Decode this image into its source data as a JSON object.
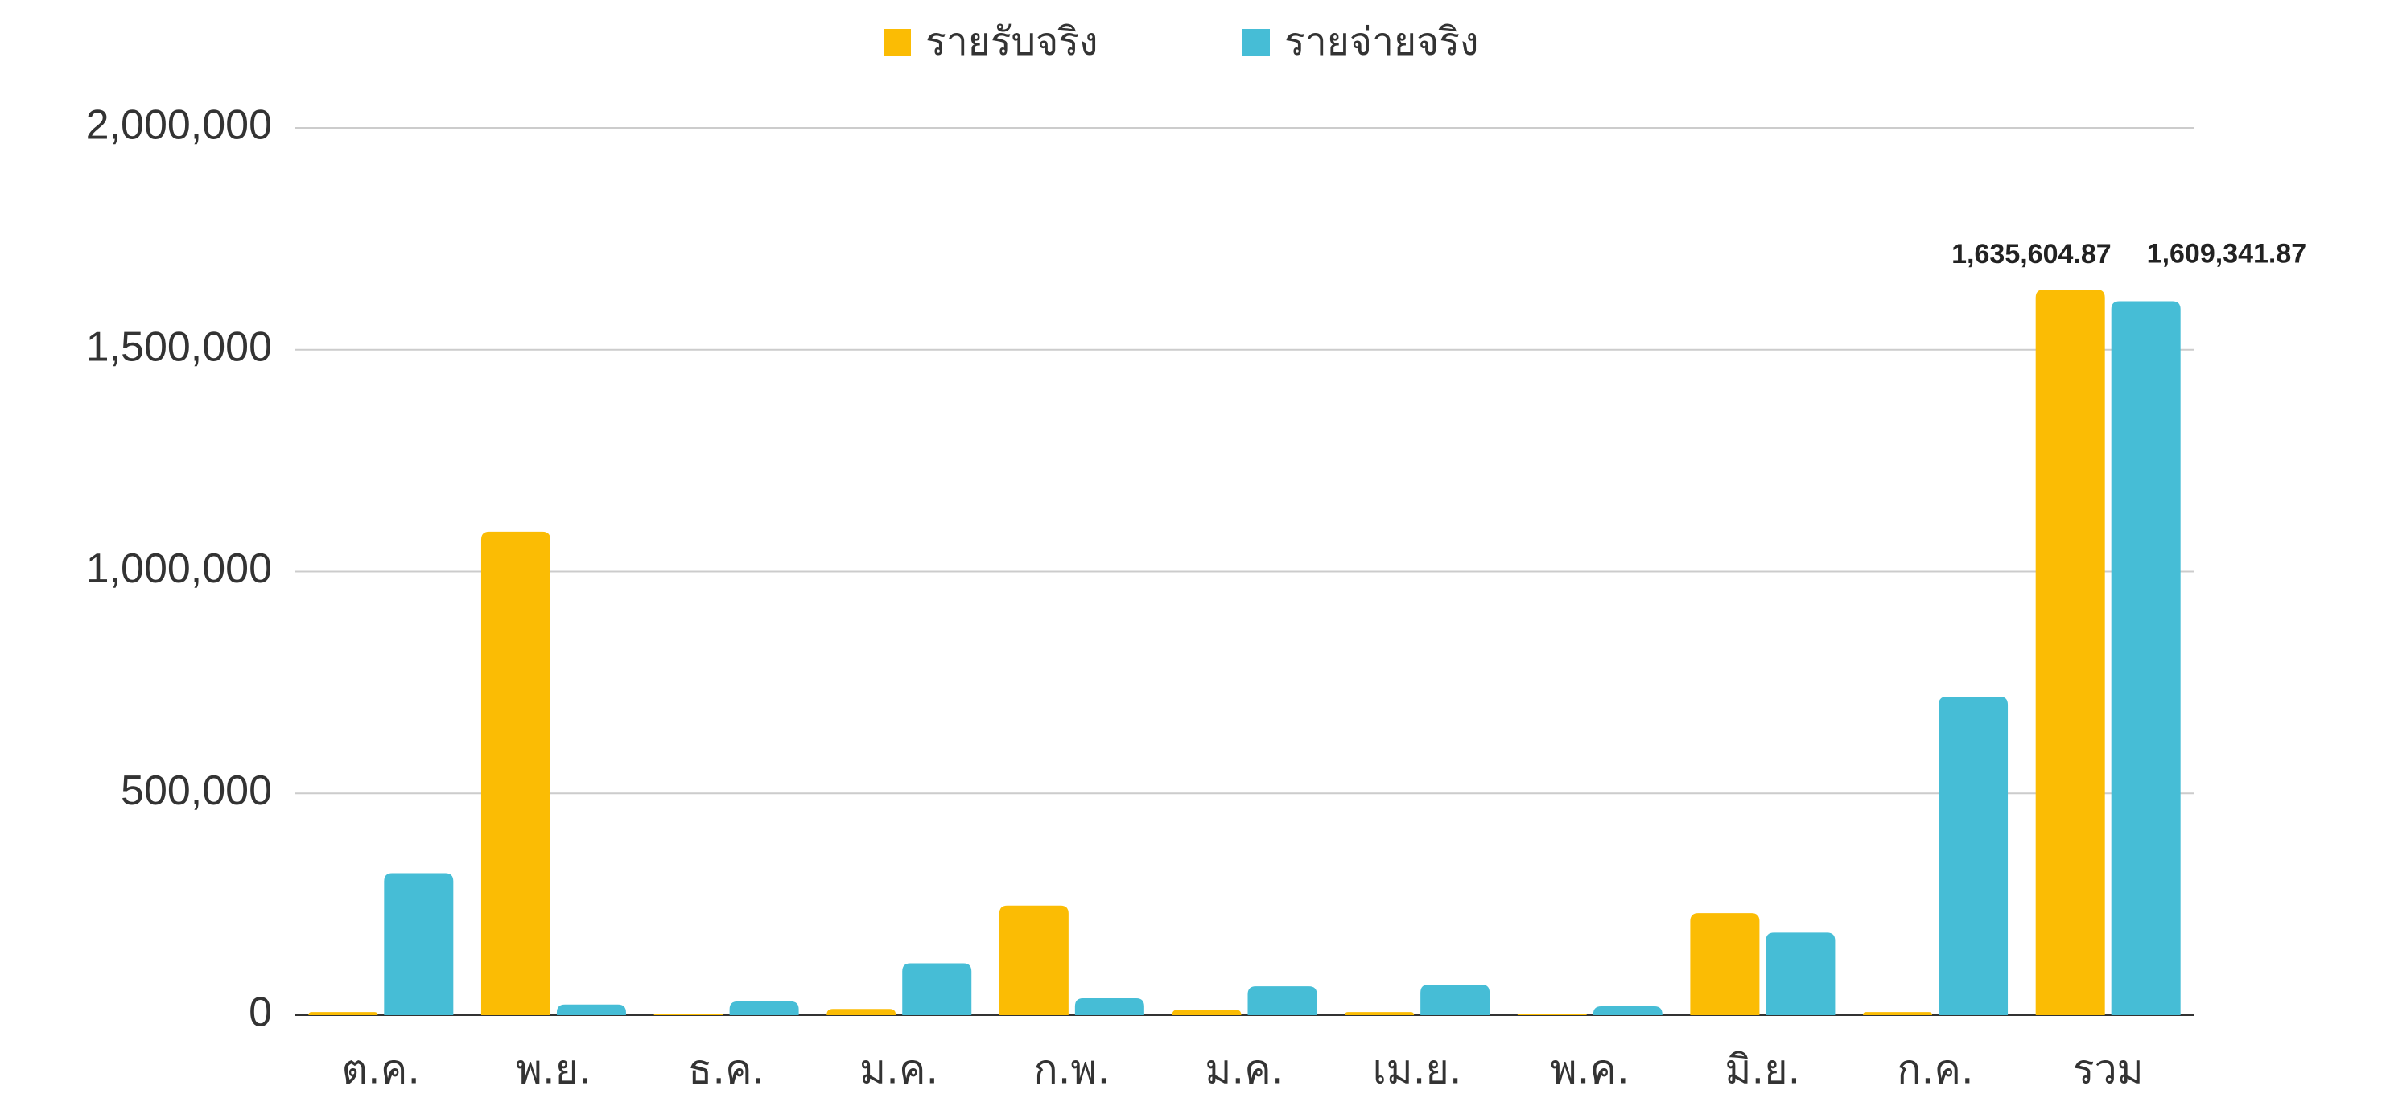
{
  "chart_data": {
    "type": "bar",
    "categories": [
      "ต.ค.",
      "พ.ย.",
      "ธ.ค.",
      "ม.ค.",
      "ก.พ.",
      "ม.ค.",
      "เม.ย.",
      "พ.ค.",
      "มิ.ย.",
      "ก.ค.",
      "รวม"
    ],
    "series": [
      {
        "name": "รายรับจริง",
        "color": "#fbbc04",
        "values": [
          7000,
          1090000,
          3000,
          14000,
          247000,
          12000,
          7000,
          3000,
          230000,
          7000,
          1635604.87
        ],
        "value_labels": [
          null,
          null,
          null,
          null,
          null,
          null,
          null,
          null,
          null,
          null,
          "1,635,604.87"
        ]
      },
      {
        "name": "รายจ่ายจริง",
        "color": "#46bdd6",
        "values": [
          320000,
          24000,
          31000,
          117000,
          38000,
          65000,
          69000,
          20000,
          186000,
          718000,
          1609341.87
        ],
        "value_labels": [
          null,
          null,
          null,
          null,
          null,
          null,
          null,
          null,
          null,
          null,
          "1,609,341.87"
        ]
      }
    ],
    "ylim": [
      0,
      2000000
    ],
    "yticks": [
      0,
      {
        "value": 500000,
        "label": "500,000"
      },
      {
        "value": 1000000,
        "label": "1,000,000"
      },
      {
        "value": 1500000,
        "label": "1,500,000"
      },
      {
        "value": 2000000,
        "label": "2,000,000"
      }
    ],
    "grid": true,
    "legend": "top"
  }
}
